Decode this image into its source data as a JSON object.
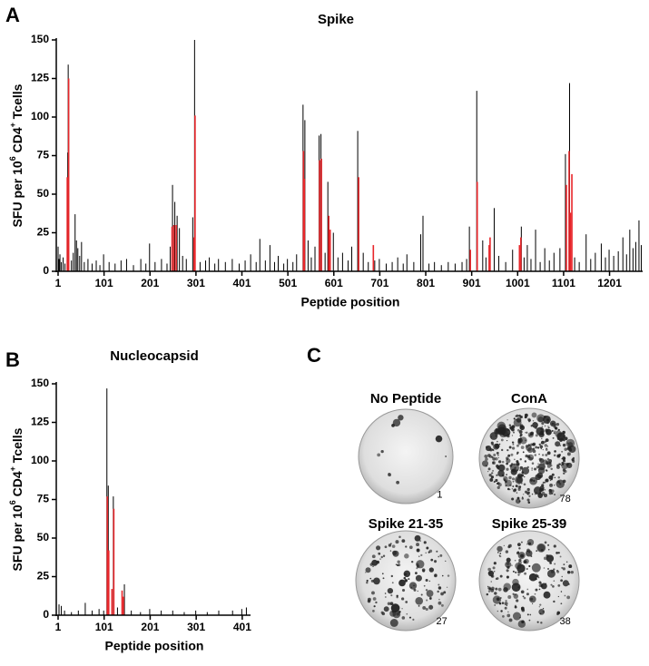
{
  "chart_data": [
    {
      "type": "bar",
      "panel": "A",
      "title": "Spike",
      "xlabel": "Peptide position",
      "ylabel_parts": [
        "SFU per 10",
        "6",
        " CD4",
        "+",
        " Tcells"
      ],
      "xlim": [
        1,
        1273
      ],
      "xticks": [
        1,
        101,
        201,
        301,
        401,
        501,
        601,
        701,
        801,
        901,
        1001,
        1101,
        1201
      ],
      "ylim": [
        0,
        150
      ],
      "yticks": [
        0,
        25,
        50,
        75,
        100,
        125,
        150
      ],
      "series": [
        {
          "color": "#000000",
          "x": [
            1,
            3,
            5,
            8,
            12,
            16,
            22,
            23,
            30,
            34,
            38,
            41,
            44,
            48,
            52,
            58,
            66,
            75,
            84,
            92,
            100,
            112,
            125,
            138,
            150,
            165,
            181,
            192,
            200,
            212,
            226,
            238,
            245,
            250,
            255,
            260,
            265,
            272,
            280,
            294,
            298,
            310,
            322,
            330,
            342,
            350,
            365,
            380,
            395,
            408,
            420,
            432,
            440,
            452,
            462,
            472,
            480,
            492,
            500,
            512,
            520,
            534,
            538,
            545,
            552,
            560,
            569,
            573,
            582,
            588,
            600,
            610,
            620,
            632,
            640,
            653,
            665,
            676,
            690,
            700,
            715,
            728,
            740,
            752,
            760,
            775,
            790,
            795,
            808,
            820,
            835,
            850,
            865,
            880,
            890,
            896,
            912,
            925,
            932,
            950,
            960,
            975,
            990,
            1009,
            1015,
            1022,
            1030,
            1040,
            1050,
            1060,
            1070,
            1080,
            1093,
            1105,
            1114,
            1125,
            1135,
            1150,
            1160,
            1170,
            1183,
            1192,
            1200,
            1210,
            1220,
            1230,
            1238,
            1245,
            1252,
            1258,
            1265,
            1270
          ],
          "values": [
            16,
            8,
            11,
            6,
            9,
            5,
            77,
            134,
            7,
            12,
            37,
            20,
            15,
            10,
            19,
            6,
            8,
            5,
            7,
            4,
            11,
            6,
            5,
            7,
            8,
            4,
            8,
            5,
            18,
            6,
            8,
            5,
            16,
            56,
            45,
            36,
            28,
            10,
            8,
            35,
            150,
            6,
            7,
            9,
            5,
            8,
            6,
            8,
            5,
            7,
            11,
            6,
            21,
            7,
            17,
            6,
            10,
            5,
            8,
            6,
            11,
            108,
            98,
            20,
            9,
            16,
            88,
            89,
            12,
            58,
            25,
            9,
            12,
            7,
            16,
            91,
            12,
            6,
            7,
            8,
            5,
            6,
            9,
            5,
            11,
            6,
            24,
            36,
            5,
            6,
            4,
            6,
            5,
            6,
            8,
            29,
            117,
            20,
            9,
            41,
            10,
            6,
            14,
            29,
            9,
            17,
            8,
            27,
            6,
            15,
            7,
            12,
            15,
            76,
            122,
            9,
            6,
            24,
            8,
            12,
            18,
            9,
            14,
            10,
            13,
            22,
            11,
            27,
            15,
            19,
            33,
            17
          ]
        },
        {
          "color": "#e8262a",
          "x": [
            21,
            24,
            249,
            253,
            258,
            297,
            299,
            535,
            537,
            570,
            574,
            590,
            593,
            655,
            687,
            898,
            913,
            939,
            941,
            1005,
            1008,
            1107,
            1113,
            1116,
            1119
          ],
          "values": [
            61,
            125,
            29,
            30,
            30,
            22,
            101,
            78,
            60,
            72,
            73,
            36,
            27,
            61,
            17,
            14,
            58,
            17,
            22,
            17,
            22,
            56,
            78,
            38,
            63
          ]
        }
      ]
    },
    {
      "type": "bar",
      "panel": "B",
      "title": "Nucleocapsid",
      "xlabel": "Peptide position",
      "ylabel_parts": [
        "SFU per 10",
        "6",
        " CD4",
        "+",
        " Tcells"
      ],
      "xlim": [
        1,
        419
      ],
      "xticks": [
        1,
        101,
        201,
        301,
        401
      ],
      "ylim": [
        0,
        150
      ],
      "yticks": [
        0,
        25,
        50,
        75,
        100,
        125,
        150
      ],
      "series": [
        {
          "color": "#000000",
          "x": [
            3,
            8,
            15,
            30,
            45,
            60,
            75,
            90,
            100,
            107,
            110,
            121,
            130,
            145,
            160,
            180,
            200,
            225,
            250,
            275,
            300,
            325,
            350,
            380,
            400,
            410
          ],
          "values": [
            7,
            6,
            3,
            2,
            3,
            8,
            3,
            4,
            3,
            147,
            84,
            77,
            5,
            20,
            3,
            2,
            4,
            3,
            3,
            2,
            3,
            2,
            3,
            3,
            4,
            5
          ]
        },
        {
          "color": "#e8262a",
          "x": [
            108,
            111,
            118,
            122,
            140,
            143
          ],
          "values": [
            77,
            42,
            17,
            69,
            16,
            12
          ]
        }
      ]
    }
  ],
  "wells": {
    "panel": "C",
    "items": [
      {
        "label": "No Peptide",
        "count": 1
      },
      {
        "label": "ConA",
        "count": 78
      },
      {
        "label": "Spike 21-35",
        "count": 27
      },
      {
        "label": "Spike 25-39",
        "count": 38
      }
    ]
  }
}
